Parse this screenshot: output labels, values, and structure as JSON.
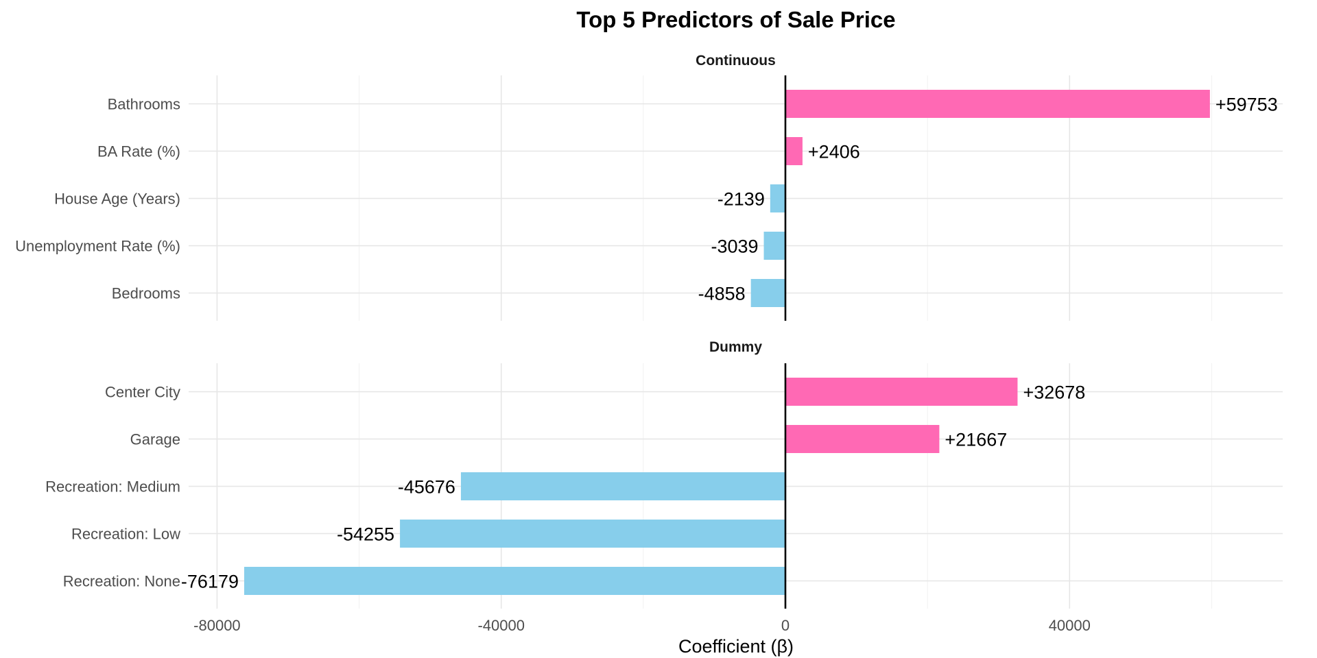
{
  "chart_data": {
    "type": "bar",
    "orientation": "horizontal",
    "title": "Top 5 Predictors of Sale Price",
    "xlabel": "Coefficient (β)",
    "ylabel": "",
    "xlim": [
      -84000,
      70000
    ],
    "x_ticks": [
      -80000,
      -40000,
      0,
      40000
    ],
    "x_tick_labels": [
      "-80000",
      "-40000",
      "0",
      "40000"
    ],
    "grid": true,
    "legend": "none",
    "colors": {
      "positive": "#FF69B4",
      "negative": "#87CEEB"
    },
    "panels": [
      {
        "name": "Continuous",
        "categories": [
          "Bathrooms",
          "BA Rate (%)",
          "House Age (Years)",
          "Unemployment Rate (%)",
          "Bedrooms"
        ],
        "values": [
          59753,
          2406,
          -2139,
          -3039,
          -4858
        ],
        "labels": [
          "+59753",
          "+2406",
          "-2139",
          "-3039",
          "-4858"
        ]
      },
      {
        "name": "Dummy",
        "categories": [
          "Center City",
          "Garage",
          "Recreation: Medium",
          "Recreation: Low",
          "Recreation: None"
        ],
        "values": [
          32678,
          21667,
          -45676,
          -54255,
          -76179
        ],
        "labels": [
          "+32678",
          "+21667",
          "-45676",
          "-54255",
          "-76179"
        ]
      }
    ]
  }
}
